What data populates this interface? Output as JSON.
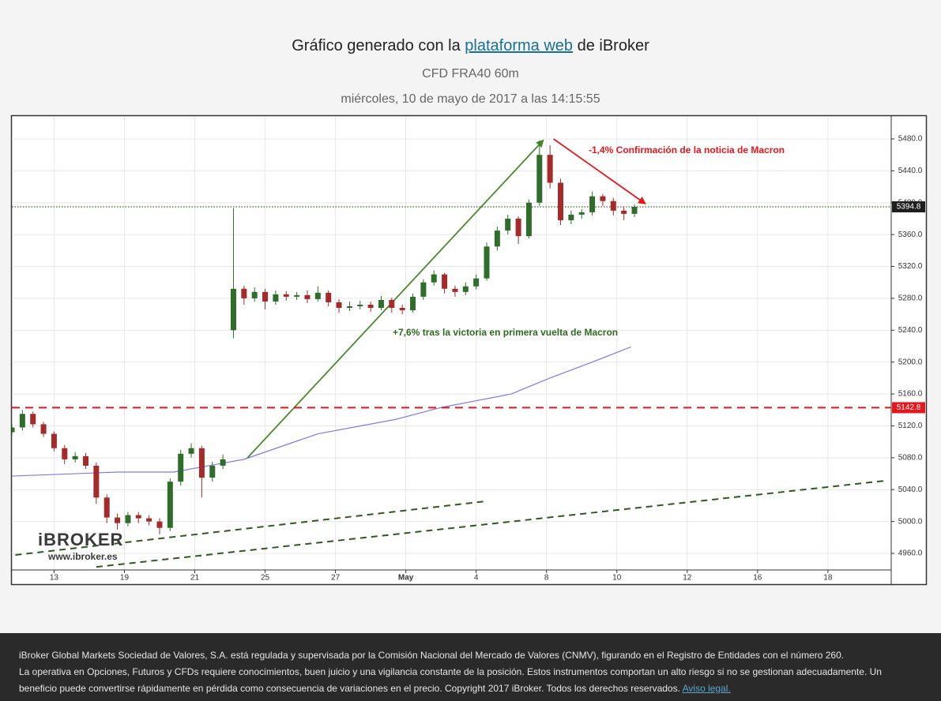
{
  "header": {
    "title_before": "Gráfico generado con la ",
    "title_link": "plataforma web",
    "title_after": " de iBroker",
    "subtitle": "CFD FRA40 60m",
    "date": "miércoles, 10 de mayo de 2017 a las 14:15:55"
  },
  "logo": {
    "name": "iBROKER",
    "url": "www.ibroker.es"
  },
  "chart_data": {
    "type": "candlestick",
    "xlim": [
      0,
      250
    ],
    "ylim": [
      4939.2,
      5507.7
    ],
    "grid": true,
    "xticks": [
      {
        "value": 12,
        "label": "13"
      },
      {
        "value": 32,
        "label": "19"
      },
      {
        "value": 52,
        "label": "21"
      },
      {
        "value": 72,
        "label": "25"
      },
      {
        "value": 92,
        "label": "27"
      },
      {
        "value": 112,
        "label": "May"
      },
      {
        "value": 132,
        "label": "4"
      },
      {
        "value": 152,
        "label": "8"
      },
      {
        "value": 172,
        "label": "10"
      },
      {
        "value": 192,
        "label": "12"
      },
      {
        "value": 212,
        "label": "16"
      },
      {
        "value": 232,
        "label": "18"
      }
    ],
    "yticks": [
      {
        "value": 4960,
        "label": "4960.0"
      },
      {
        "value": 5000,
        "label": "5000.0"
      },
      {
        "value": 5040,
        "label": "5040.0"
      },
      {
        "value": 5080,
        "label": "5080.0"
      },
      {
        "value": 5120,
        "label": "5120.0"
      },
      {
        "value": 5160,
        "label": "5160.0"
      },
      {
        "value": 5200,
        "label": "5200.0"
      },
      {
        "value": 5240,
        "label": "5240.0"
      },
      {
        "value": 5280,
        "label": "5280.0"
      },
      {
        "value": 5320,
        "label": "5320.0"
      },
      {
        "value": 5360,
        "label": "5360.0"
      },
      {
        "value": 5400,
        "label": "5400.0"
      },
      {
        "value": 5440,
        "label": "5440.0"
      },
      {
        "value": 5480,
        "label": "5480.0"
      }
    ],
    "up_color": "#2f6e2a",
    "down_color": "#a52a2a",
    "x": [
      0,
      3,
      6,
      9,
      12,
      15,
      18,
      21,
      24,
      27,
      30,
      33,
      36,
      39,
      42,
      45,
      48,
      51,
      54,
      57,
      60,
      63,
      66,
      69,
      72,
      75,
      78,
      81,
      84,
      87,
      90,
      93,
      96,
      99,
      102,
      105,
      108,
      111,
      114,
      117,
      120,
      123,
      126,
      129,
      132,
      135,
      138,
      141,
      144,
      147,
      150,
      153,
      156,
      159,
      162,
      165,
      168,
      171,
      174,
      177
    ],
    "open": [
      5112,
      5118,
      5135,
      5122,
      5110,
      5092,
      5078,
      5082,
      5070,
      5030,
      5005,
      4998,
      5008,
      5004,
      5000,
      4992,
      5050,
      5085,
      5092,
      5055,
      5070,
      5240,
      5292,
      5280,
      5288,
      5276,
      5285,
      5282,
      5284,
      5279,
      5287,
      5275,
      5268,
      5270,
      5272,
      5268,
      5278,
      5268,
      5265,
      5282,
      5300,
      5310,
      5292,
      5288,
      5295,
      5305,
      5345,
      5365,
      5380,
      5358,
      5400,
      5460,
      5425,
      5378,
      5385,
      5388,
      5408,
      5402,
      5390,
      5386
    ],
    "high": [
      5122,
      5140,
      5138,
      5125,
      5113,
      5096,
      5087,
      5086,
      5074,
      5034,
      5010,
      5012,
      5012,
      5008,
      5004,
      5054,
      5090,
      5098,
      5095,
      5075,
      5084,
      5393,
      5296,
      5294,
      5292,
      5290,
      5289,
      5288,
      5290,
      5295,
      5290,
      5279,
      5276,
      5277,
      5276,
      5283,
      5281,
      5272,
      5286,
      5304,
      5315,
      5312,
      5296,
      5300,
      5310,
      5350,
      5370,
      5385,
      5383,
      5404,
      5478,
      5472,
      5430,
      5390,
      5392,
      5414,
      5411,
      5406,
      5395,
      5398
    ],
    "low": [
      5108,
      5114,
      5118,
      5106,
      5088,
      5072,
      5074,
      5066,
      5022,
      4998,
      4990,
      4994,
      4998,
      4995,
      4984,
      4988,
      5045,
      5080,
      5030,
      5050,
      5066,
      5230,
      5272,
      5276,
      5266,
      5272,
      5277,
      5278,
      5274,
      5276,
      5270,
      5262,
      5264,
      5266,
      5263,
      5265,
      5262,
      5260,
      5262,
      5278,
      5296,
      5286,
      5282,
      5284,
      5291,
      5302,
      5340,
      5360,
      5348,
      5355,
      5396,
      5418,
      5372,
      5373,
      5380,
      5384,
      5396,
      5384,
      5378,
      5382
    ],
    "close": [
      5118,
      5135,
      5122,
      5110,
      5092,
      5078,
      5082,
      5070,
      5030,
      5005,
      4998,
      5008,
      5004,
      5000,
      4992,
      5050,
      5085,
      5092,
      5055,
      5070,
      5078,
      5292,
      5280,
      5288,
      5276,
      5285,
      5282,
      5284,
      5279,
      5287,
      5275,
      5268,
      5270,
      5272,
      5268,
      5278,
      5268,
      5265,
      5282,
      5300,
      5310,
      5292,
      5288,
      5295,
      5305,
      5345,
      5365,
      5380,
      5358,
      5400,
      5460,
      5425,
      5378,
      5385,
      5388,
      5408,
      5402,
      5390,
      5386,
      5394.8
    ],
    "ma": {
      "color": "#7b7bf0",
      "x": [
        0,
        30,
        46,
        66,
        87,
        109,
        122,
        142,
        153,
        165,
        176
      ],
      "values": [
        5057,
        5062,
        5062,
        5078,
        5110,
        5128,
        5143,
        5160,
        5180,
        5200,
        5219
      ]
    },
    "hlines": [
      {
        "value": 5394.8,
        "color": "#2e6b1e",
        "style": "dotted",
        "label_bg": "#1e1e1e"
      },
      {
        "value": 5142.8,
        "color": "#e8161b",
        "style": "dashed",
        "label_bg": "#e8161b"
      }
    ],
    "trendlines": [
      {
        "color": "#2e5a1c",
        "style": "dashed",
        "x": [
          1,
          134
        ],
        "y": [
          4958,
          5025
        ]
      },
      {
        "color": "#2e5a1c",
        "style": "dashed",
        "x": [
          24,
          248
        ],
        "y": [
          4943,
          5051
        ]
      },
      {
        "color": "#4a8a2c",
        "style": "arrow",
        "x": [
          67,
          151
        ],
        "y": [
          5080,
          5478
        ]
      },
      {
        "color": "#e8161b",
        "style": "arrow",
        "x": [
          154,
          180
        ],
        "y": [
          5480,
          5399
        ]
      }
    ],
    "annotations": [
      {
        "text": "-1,4% Confirmación de la noticia de Macron",
        "color": "#e8161b"
      },
      {
        "text": "+7,6% tras la victoria en primera vuelta de Macron",
        "color": "#2e6b1e"
      }
    ]
  },
  "footer": {
    "line1": "iBroker Global Markets Sociedad de Valores, S.A. está regulada y supervisada por la Comisión Nacional del Mercado de Valores (CNMV), figurando en el Registro de Entidades con el número 260.",
    "line2": "La operativa en Opciones, Futuros y CFDs requiere conocimientos, buen juicio y una vigilancia constante de la posición. Estos instrumentos comportan un alto riesgo si no se gestionan adecuadamente. Un",
    "line3": "beneficio puede convertirse rápidamente en pérdida como consecuencia de variaciones en el precio. Copyright 2017 iBroker. Todos los derechos reservados. ",
    "link": "Aviso legal."
  }
}
